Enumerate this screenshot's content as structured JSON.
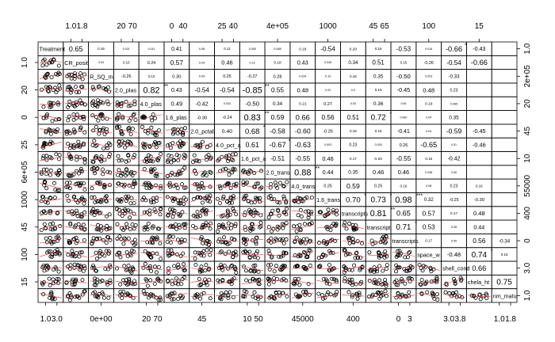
{
  "chart_data": {
    "type": "scatter-matrix",
    "title": "",
    "variables": [
      "Treatment",
      "CR_posit",
      "R_SQ_m",
      "2.0_plas",
      "4.0_plas",
      "1.6_plas",
      "2.0_pctall",
      "4.0_pct_a",
      "1.6_pct_a",
      "2.0_trans",
      "4.0_trans",
      "1.6_trans",
      "transcripts",
      "transcript",
      "transcripts",
      "space_w",
      "shell_cond",
      "chela_ht",
      "nm_matu"
    ],
    "correlations": [
      {
        "row": 0,
        "col": 1,
        "value": "0.65"
      },
      {
        "row": 0,
        "col": 2,
        "value": "0.16"
      },
      {
        "row": 0,
        "col": 3,
        "value": "0.021"
      },
      {
        "row": 0,
        "col": 4,
        "value": "0.011"
      },
      {
        "row": 0,
        "col": 5,
        "value": "0.41"
      },
      {
        "row": 0,
        "col": 6,
        "value": "0.08"
      },
      {
        "row": 0,
        "col": 7,
        "value": "0.13"
      },
      {
        "row": 0,
        "col": 8,
        "value": "0.055"
      },
      {
        "row": 0,
        "col": 9,
        "value": "0.089"
      },
      {
        "row": 0,
        "col": 10,
        "value": "0.18"
      },
      {
        "row": 0,
        "col": 11,
        "value": "-0.54"
      },
      {
        "row": 0,
        "col": 12,
        "value": "0.20"
      },
      {
        "row": 0,
        "col": 13,
        "value": "0.16"
      },
      {
        "row": 0,
        "col": 14,
        "value": "-0.53"
      },
      {
        "row": 0,
        "col": 15,
        "value": "0.016"
      },
      {
        "row": 0,
        "col": 16,
        "value": "-0.66",
        "sig": "*"
      },
      {
        "row": 0,
        "col": 17,
        "value": "-0.43"
      },
      {
        "row": 1,
        "col": 2,
        "value": "0.04"
      },
      {
        "row": 1,
        "col": 3,
        "value": "0.15"
      },
      {
        "row": 1,
        "col": 4,
        "value": "0.24"
      },
      {
        "row": 1,
        "col": 5,
        "value": "0.57"
      },
      {
        "row": 1,
        "col": 6,
        "value": "0.09"
      },
      {
        "row": 1,
        "col": 7,
        "value": "0.46"
      },
      {
        "row": 1,
        "col": 8,
        "value": "0.11"
      },
      {
        "row": 1,
        "col": 9,
        "value": "0.18"
      },
      {
        "row": 1,
        "col": 10,
        "value": "0.43"
      },
      {
        "row": 1,
        "col": 11,
        "value": "0.045"
      },
      {
        "row": 1,
        "col": 12,
        "value": "0.34"
      },
      {
        "row": 1,
        "col": 13,
        "value": "0.51"
      },
      {
        "row": 1,
        "col": 14,
        "value": "0.15"
      },
      {
        "row": 1,
        "col": 15,
        "value": "-0.26"
      },
      {
        "row": 1,
        "col": 16,
        "value": "-0.54"
      },
      {
        "row": 1,
        "col": 17,
        "value": "-0.66"
      },
      {
        "row": 2,
        "col": 3,
        "value": "-0.26"
      },
      {
        "row": 2,
        "col": 4,
        "value": "0.13"
      },
      {
        "row": 2,
        "col": 5,
        "value": "0.30"
      },
      {
        "row": 2,
        "col": 6,
        "value": "0.09"
      },
      {
        "row": 2,
        "col": 7,
        "value": "0.25"
      },
      {
        "row": 2,
        "col": 8,
        "value": "-0.27"
      },
      {
        "row": 2,
        "col": 9,
        "value": "0.28"
      },
      {
        "row": 2,
        "col": 10,
        "value": "0.034"
      },
      {
        "row": 2,
        "col": 11,
        "value": "0.10"
      },
      {
        "row": 2,
        "col": 12,
        "value": "0.16"
      },
      {
        "row": 2,
        "col": 13,
        "value": "0.35"
      },
      {
        "row": 2,
        "col": 14,
        "value": "-0.50"
      },
      {
        "row": 2,
        "col": 15,
        "value": "0.023"
      },
      {
        "row": 2,
        "col": 16,
        "value": "-0.33"
      },
      {
        "row": 3,
        "col": 4,
        "value": "0.82",
        "sig": "**"
      },
      {
        "row": 3,
        "col": 5,
        "value": "0.43"
      },
      {
        "row": 3,
        "col": 6,
        "value": "-0.54"
      },
      {
        "row": 3,
        "col": 7,
        "value": "-0.54"
      },
      {
        "row": 3,
        "col": 8,
        "value": "-0.85",
        "sig": "**"
      },
      {
        "row": 3,
        "col": 9,
        "value": "0.55"
      },
      {
        "row": 3,
        "col": 10,
        "value": "0.48"
      },
      {
        "row": 3,
        "col": 11,
        "value": "0.02"
      },
      {
        "row": 3,
        "col": 12,
        "value": "0.0"
      },
      {
        "row": 3,
        "col": 13,
        "value": "0.16"
      },
      {
        "row": 3,
        "col": 14,
        "value": "-0.45"
      },
      {
        "row": 3,
        "col": 15,
        "value": "0.48"
      },
      {
        "row": 3,
        "col": 16,
        "value": "0.23"
      },
      {
        "row": 4,
        "col": 5,
        "value": "0.49"
      },
      {
        "row": 4,
        "col": 6,
        "value": "-0.42"
      },
      {
        "row": 4,
        "col": 7,
        "value": "0.033"
      },
      {
        "row": 4,
        "col": 8,
        "value": "-0.50"
      },
      {
        "row": 4,
        "col": 9,
        "value": "0.34"
      },
      {
        "row": 4,
        "col": 10,
        "value": "0.21"
      },
      {
        "row": 4,
        "col": 11,
        "value": "0.27"
      },
      {
        "row": 4,
        "col": 12,
        "value": "0.03"
      },
      {
        "row": 4,
        "col": 13,
        "value": "0.36"
      },
      {
        "row": 4,
        "col": 14,
        "value": "0.06"
      },
      {
        "row": 4,
        "col": 15,
        "value": "0.19"
      },
      {
        "row": 4,
        "col": 16,
        "value": "0.085"
      },
      {
        "row": 5,
        "col": 6,
        "value": "-0.30"
      },
      {
        "row": 5,
        "col": 7,
        "value": "-0.24"
      },
      {
        "row": 5,
        "col": 8,
        "value": "0.83",
        "sig": "**"
      },
      {
        "row": 5,
        "col": 9,
        "value": "0.59"
      },
      {
        "row": 5,
        "col": 10,
        "value": "0.66"
      },
      {
        "row": 5,
        "col": 11,
        "value": "0.56"
      },
      {
        "row": 5,
        "col": 12,
        "value": "0.51"
      },
      {
        "row": 5,
        "col": 13,
        "value": "0.72",
        "sig": "*"
      },
      {
        "row": 5,
        "col": 14,
        "value": "0.060"
      },
      {
        "row": 5,
        "col": 15,
        "value": "0.04"
      },
      {
        "row": 5,
        "col": 16,
        "value": "0.35"
      },
      {
        "row": 6,
        "col": 7,
        "value": "0.40"
      },
      {
        "row": 6,
        "col": 8,
        "value": "0.68",
        "sig": "*"
      },
      {
        "row": 6,
        "col": 9,
        "value": "-0.58"
      },
      {
        "row": 6,
        "col": 10,
        "value": "-0.60"
      },
      {
        "row": 6,
        "col": 11,
        "value": "-0.26"
      },
      {
        "row": 6,
        "col": 12,
        "value": "0.16"
      },
      {
        "row": 6,
        "col": 13,
        "value": "0.16"
      },
      {
        "row": 6,
        "col": 14,
        "value": "-0.41"
      },
      {
        "row": 6,
        "col": 15,
        "value": "0.04"
      },
      {
        "row": 6,
        "col": 16,
        "value": "-0.59"
      },
      {
        "row": 6,
        "col": 17,
        "value": "-0.45"
      },
      {
        "row": 7,
        "col": 8,
        "value": "0.61"
      },
      {
        "row": 7,
        "col": 9,
        "value": "-0.67",
        "sig": "*"
      },
      {
        "row": 7,
        "col": 10,
        "value": "-0.63"
      },
      {
        "row": 7,
        "col": 11,
        "value": "0.003"
      },
      {
        "row": 7,
        "col": 12,
        "value": "0.23"
      },
      {
        "row": 7,
        "col": 13,
        "value": "0.026"
      },
      {
        "row": 7,
        "col": 14,
        "value": "0.26"
      },
      {
        "row": 7,
        "col": 15,
        "value": "-0.65"
      },
      {
        "row": 7,
        "col": 16,
        "value": "0.01"
      },
      {
        "row": 7,
        "col": 17,
        "value": "-0.46"
      },
      {
        "row": 8,
        "col": 9,
        "value": "-0.51"
      },
      {
        "row": 8,
        "col": 10,
        "value": "-0.55"
      },
      {
        "row": 8,
        "col": 11,
        "value": "0.46"
      },
      {
        "row": 8,
        "col": 12,
        "value": "0.17"
      },
      {
        "row": 8,
        "col": 13,
        "value": "0.20"
      },
      {
        "row": 8,
        "col": 14,
        "value": "-0.55"
      },
      {
        "row": 8,
        "col": 15,
        "value": "0.16"
      },
      {
        "row": 8,
        "col": 16,
        "value": "-0.42"
      },
      {
        "row": 9,
        "col": 10,
        "value": "0.88",
        "sig": "**"
      },
      {
        "row": 9,
        "col": 11,
        "value": "0.44"
      },
      {
        "row": 9,
        "col": 12,
        "value": "0.35"
      },
      {
        "row": 9,
        "col": 13,
        "value": "0.46"
      },
      {
        "row": 9,
        "col": 14,
        "value": "0.46"
      },
      {
        "row": 9,
        "col": 15,
        "value": "0.038"
      },
      {
        "row": 9,
        "col": 16,
        "value": "0.06"
      },
      {
        "row": 10,
        "col": 11,
        "value": "0.25"
      },
      {
        "row": 10,
        "col": 12,
        "value": "0.59"
      },
      {
        "row": 10,
        "col": 13,
        "value": "0.25"
      },
      {
        "row": 10,
        "col": 14,
        "value": "0.16"
      },
      {
        "row": 10,
        "col": 15,
        "value": "0.08"
      },
      {
        "row": 10,
        "col": 16,
        "value": "0.23"
      },
      {
        "row": 10,
        "col": 17,
        "value": "0.16"
      },
      {
        "row": 11,
        "col": 12,
        "value": "0.70",
        "sig": "*"
      },
      {
        "row": 11,
        "col": 13,
        "value": "0.73",
        "sig": "*"
      },
      {
        "row": 11,
        "col": 14,
        "value": "0.98",
        "sig": "***"
      },
      {
        "row": 11,
        "col": 15,
        "value": "0.32"
      },
      {
        "row": 11,
        "col": 16,
        "value": "-0.25"
      },
      {
        "row": 11,
        "col": 17,
        "value": "-0.30"
      },
      {
        "row": 12,
        "col": 13,
        "value": "0.81",
        "sig": "**"
      },
      {
        "row": 12,
        "col": 14,
        "value": "0.65"
      },
      {
        "row": 12,
        "col": 15,
        "value": "0.57"
      },
      {
        "row": 12,
        "col": 16,
        "value": "0.17"
      },
      {
        "row": 12,
        "col": 17,
        "value": "0.48"
      },
      {
        "row": 13,
        "col": 14,
        "value": "0.71",
        "sig": "*"
      },
      {
        "row": 13,
        "col": 15,
        "value": "0.53"
      },
      {
        "row": 13,
        "col": 16,
        "value": "0.08"
      },
      {
        "row": 13,
        "col": 17,
        "value": "0.44"
      },
      {
        "row": 14,
        "col": 15,
        "value": "0.17"
      },
      {
        "row": 14,
        "col": 16,
        "value": "0.05"
      },
      {
        "row": 14,
        "col": 17,
        "value": "0.56"
      },
      {
        "row": 14,
        "col": 18,
        "value": "-0.34"
      },
      {
        "row": 15,
        "col": 16,
        "value": "-0.48"
      },
      {
        "row": 15,
        "col": 17,
        "value": "0.74",
        "sig": "*"
      },
      {
        "row": 15,
        "col": 18,
        "value": "0.16"
      },
      {
        "row": 16,
        "col": 17,
        "value": "0.66"
      },
      {
        "row": 17,
        "col": 18,
        "value": "0.75"
      }
    ],
    "top_ticks": [
      {
        "col": 1,
        "labels": [
          "1.0",
          "1.8"
        ]
      },
      {
        "col": 3,
        "labels": [
          "20",
          "70"
        ]
      },
      {
        "col": 5,
        "labels": [
          "0",
          "40"
        ]
      },
      {
        "col": 7,
        "labels": [
          "25",
          "40"
        ]
      },
      {
        "col": 9,
        "labels": [
          "4e+05"
        ]
      },
      {
        "col": 11,
        "labels": [
          "1000"
        ]
      },
      {
        "col": 13,
        "labels": [
          "45",
          "65"
        ]
      },
      {
        "col": 15,
        "labels": [
          "100"
        ]
      },
      {
        "col": 17,
        "labels": [
          "15"
        ]
      }
    ],
    "bottom_ticks": [
      {
        "col": 0,
        "labels": [
          "1.0",
          "3.0"
        ]
      },
      {
        "col": 2,
        "labels": [
          "0e+00"
        ]
      },
      {
        "col": 4,
        "labels": [
          "20",
          "70"
        ]
      },
      {
        "col": 6,
        "labels": [
          "45"
        ]
      },
      {
        "col": 8,
        "labels": [
          "10",
          "50"
        ]
      },
      {
        "col": 10,
        "labels": [
          "45000"
        ]
      },
      {
        "col": 12,
        "labels": [
          "400"
        ]
      },
      {
        "col": 14,
        "labels": [
          "0",
          "3"
        ]
      },
      {
        "col": 16,
        "labels": [
          "3.0",
          "3.8"
        ]
      },
      {
        "col": 18,
        "labels": [
          "1.0",
          "1.8"
        ]
      }
    ],
    "left_ticks": [
      {
        "row": 1,
        "labels": [
          "1.0"
        ]
      },
      {
        "row": 3,
        "labels": [
          "20"
        ]
      },
      {
        "row": 5,
        "labels": [
          "0"
        ]
      },
      {
        "row": 7,
        "labels": [
          "25"
        ]
      },
      {
        "row": 9,
        "labels": [
          "6e+05"
        ]
      },
      {
        "row": 11,
        "labels": [
          "1000"
        ]
      },
      {
        "row": 13,
        "labels": [
          "45"
        ]
      },
      {
        "row": 15,
        "labels": [
          "100"
        ]
      },
      {
        "row": 17,
        "labels": [
          "15"
        ]
      }
    ],
    "right_ticks": [
      {
        "row": 0,
        "labels": [
          "1.0"
        ]
      },
      {
        "row": 2,
        "labels": [
          "2e+05"
        ]
      },
      {
        "row": 4,
        "labels": [
          "20"
        ]
      },
      {
        "row": 6,
        "labels": [
          "45"
        ]
      },
      {
        "row": 8,
        "labels": [
          "10"
        ]
      },
      {
        "row": 10,
        "labels": [
          "55000"
        ]
      },
      {
        "row": 12,
        "labels": [
          "400"
        ]
      },
      {
        "row": 14,
        "labels": [
          "0"
        ]
      },
      {
        "row": 16,
        "labels": [
          "3.0"
        ]
      },
      {
        "row": 18,
        "labels": [
          "1.0"
        ]
      }
    ],
    "colors": {
      "points": "#000000",
      "smoother": "#e03030",
      "sig_star": "#e03030",
      "border": "#000000"
    },
    "grid": false,
    "legend": "none"
  }
}
